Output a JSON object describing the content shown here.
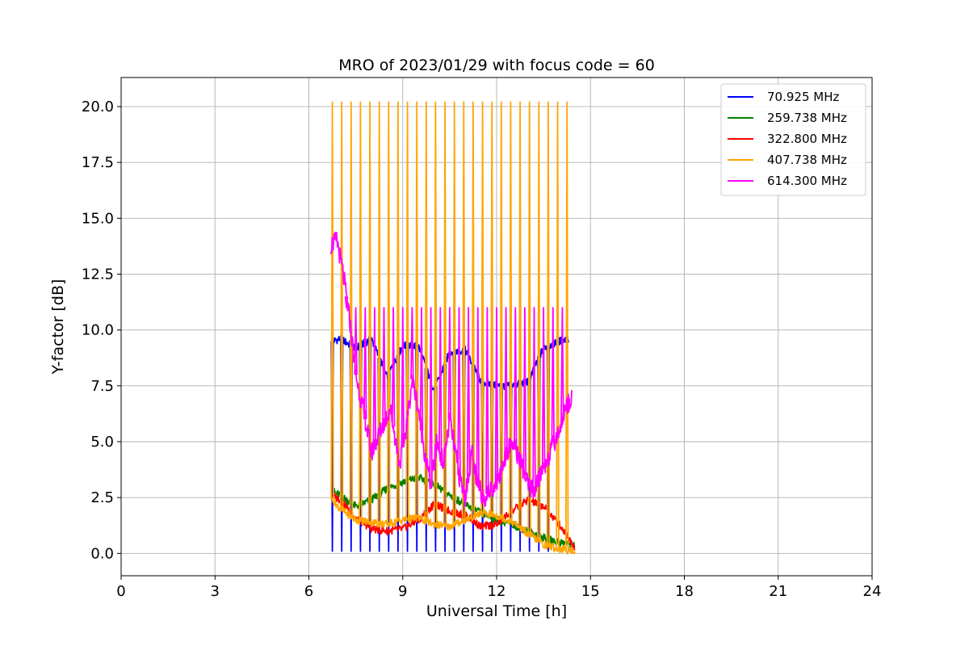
{
  "chart_data": {
    "type": "line",
    "title": "MRO of 2023/01/29 with focus code = 60",
    "xlabel": "Universal Time [h]",
    "ylabel": "Y-factor [dB]",
    "xlim": [
      0,
      24
    ],
    "ylim": [
      -1,
      21.3
    ],
    "xticks": [
      0,
      3,
      6,
      9,
      12,
      15,
      18,
      21,
      24
    ],
    "xtick_labels": [
      "0",
      "3",
      "6",
      "9",
      "12",
      "15",
      "18",
      "21",
      "24"
    ],
    "yticks": [
      0,
      2.5,
      5,
      7.5,
      10,
      12.5,
      15,
      17.5,
      20
    ],
    "ytick_labels": [
      "0.0",
      "2.5",
      "5.0",
      "7.5",
      "10.0",
      "12.5",
      "15.0",
      "17.5",
      "20.0"
    ],
    "grid": true,
    "legend_position": "top-right",
    "series": [
      {
        "name": " 70.925 MHz",
        "color": "#0000ff",
        "x": [
          6.75,
          7.0,
          7.5,
          8.0,
          8.5,
          9.0,
          9.5,
          10.0,
          10.5,
          11.0,
          11.5,
          12.0,
          12.5,
          13.0,
          13.5,
          14.0,
          14.3
        ],
        "y": [
          9.5,
          9.6,
          9.2,
          9.6,
          7.9,
          9.3,
          9.3,
          7.3,
          9.0,
          9.1,
          7.7,
          7.5,
          7.5,
          7.7,
          9.2,
          9.5,
          9.6
        ],
        "spikes": {
          "start": 6.75,
          "end": 13.8,
          "period": 0.3,
          "min": 0.1
        }
      },
      {
        "name": "259.738 MHz",
        "color": "#008000",
        "x": [
          6.75,
          7.0,
          7.5,
          8.0,
          8.5,
          9.0,
          9.5,
          10.0,
          10.5,
          11.0,
          11.5,
          12.0,
          12.5,
          13.0,
          13.5,
          14.0,
          14.5
        ],
        "y": [
          2.8,
          2.6,
          2.1,
          2.4,
          2.9,
          3.2,
          3.4,
          3.1,
          2.6,
          2.2,
          1.8,
          1.5,
          1.3,
          1.0,
          0.7,
          0.5,
          0.4
        ]
      },
      {
        "name": "322.800 MHz",
        "color": "#ff0000",
        "x": [
          6.75,
          7.0,
          7.5,
          8.0,
          8.5,
          9.0,
          9.5,
          10.0,
          10.5,
          11.0,
          11.5,
          12.0,
          12.5,
          13.0,
          13.5,
          14.0,
          14.5
        ],
        "y": [
          2.6,
          2.4,
          1.6,
          1.1,
          1.0,
          1.1,
          1.5,
          2.2,
          1.9,
          1.7,
          1.2,
          1.3,
          1.9,
          2.4,
          2.1,
          1.3,
          0.3
        ]
      },
      {
        "name": "407.738 MHz",
        "color": "#ffa500",
        "x": [
          6.75,
          7.0,
          7.5,
          8.0,
          8.5,
          9.0,
          9.5,
          10.0,
          10.5,
          11.0,
          11.5,
          12.0,
          12.5,
          13.0,
          13.5,
          14.0,
          14.5
        ],
        "y": [
          2.4,
          2.0,
          1.5,
          1.4,
          1.3,
          1.5,
          1.6,
          1.3,
          1.2,
          1.5,
          1.8,
          1.7,
          1.4,
          0.9,
          0.4,
          0.2,
          0.1
        ],
        "spikes": {
          "start": 6.75,
          "end": 14.25,
          "period": 0.3,
          "peak": 20.2
        }
      },
      {
        "name": "614.300 MHz",
        "color": "#ff00ff",
        "x": [
          6.7,
          6.9,
          7.1,
          7.3,
          7.5,
          7.8,
          8.0,
          8.3,
          8.6,
          8.9,
          9.1,
          9.3,
          9.5,
          9.7,
          9.9,
          10.1,
          10.3,
          10.5,
          10.8,
          11.0,
          11.2,
          11.4,
          11.6,
          11.9,
          12.1,
          12.3,
          12.5,
          12.8,
          13.0,
          13.2,
          13.4,
          13.7,
          14.0,
          14.2,
          14.4
        ],
        "y": [
          13.8,
          14.0,
          12.5,
          10.5,
          8.0,
          6.0,
          4.5,
          5.5,
          6.5,
          4.0,
          5.5,
          7.8,
          6.5,
          4.5,
          3.0,
          5.0,
          4.0,
          6.0,
          3.5,
          2.5,
          4.5,
          3.0,
          2.5,
          3.0,
          3.5,
          4.5,
          5.0,
          4.0,
          3.0,
          2.8,
          3.5,
          4.5,
          5.5,
          6.5,
          7.0
        ],
        "spikes": {
          "start": 7.2,
          "end": 14.25,
          "period": 0.3,
          "peak": 11.0
        }
      }
    ]
  }
}
